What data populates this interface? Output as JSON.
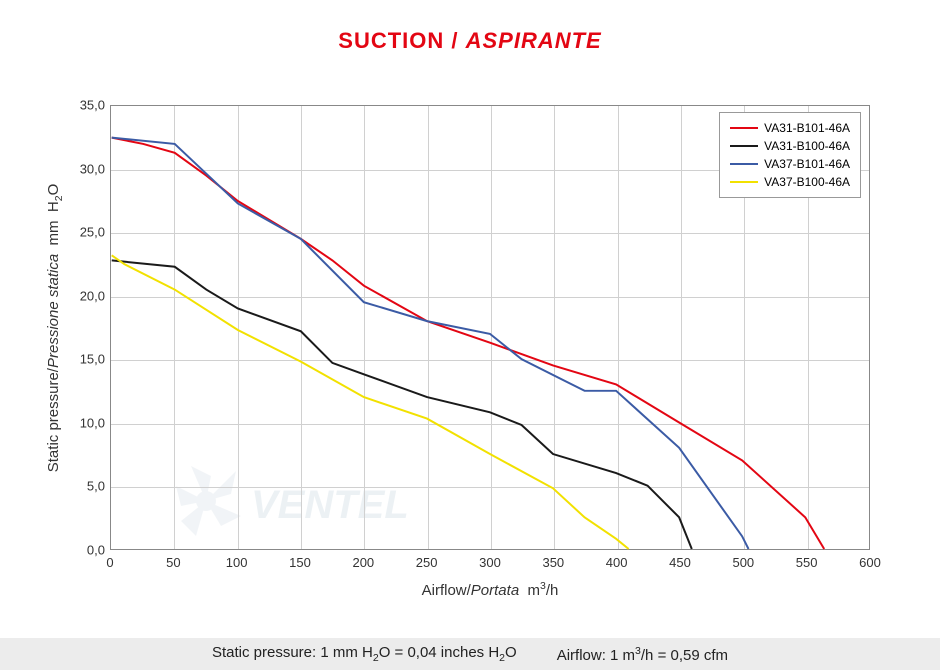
{
  "title": {
    "plain": "SUCTION",
    "separator": " / ",
    "italic": "ASPIRANTE",
    "color": "#e30613",
    "fontsize": 22
  },
  "chart": {
    "type": "line",
    "background_color": "#ffffff",
    "grid_color": "#d0d0d0",
    "border_color": "#888888",
    "xlim": [
      0,
      600
    ],
    "ylim": [
      0,
      35
    ],
    "xtick_step": 50,
    "ytick_step": 5,
    "xticks": [
      "0",
      "50",
      "100",
      "150",
      "200",
      "250",
      "300",
      "350",
      "400",
      "450",
      "500",
      "550",
      "600"
    ],
    "yticks": [
      "0,0",
      "5,0",
      "10,0",
      "15,0",
      "20,0",
      "25,0",
      "30,0",
      "35,0"
    ],
    "xlabel_plain": "Airflow",
    "xlabel_italic": "Portata",
    "xlabel_unit": "m³/h",
    "ylabel_plain": "Static pressure",
    "ylabel_italic": "Pressione statica",
    "ylabel_unit": "mm  H₂O",
    "label_fontsize": 15,
    "tick_fontsize": 13,
    "line_width": 2,
    "series": [
      {
        "name": "VA31-B101-46A",
        "color": "#e30613",
        "points": [
          [
            0,
            32.5
          ],
          [
            25,
            32.0
          ],
          [
            50,
            31.3
          ],
          [
            75,
            29.5
          ],
          [
            100,
            27.5
          ],
          [
            150,
            24.5
          ],
          [
            175,
            22.8
          ],
          [
            200,
            20.8
          ],
          [
            250,
            18.0
          ],
          [
            300,
            16.3
          ],
          [
            350,
            14.5
          ],
          [
            400,
            13.0
          ],
          [
            450,
            10.0
          ],
          [
            500,
            7.0
          ],
          [
            550,
            2.5
          ],
          [
            565,
            0
          ]
        ]
      },
      {
        "name": "VA31-B100-46A",
        "color": "#1a1a1a",
        "points": [
          [
            0,
            22.8
          ],
          [
            50,
            22.3
          ],
          [
            75,
            20.5
          ],
          [
            100,
            19.0
          ],
          [
            150,
            17.2
          ],
          [
            175,
            14.7
          ],
          [
            200,
            13.8
          ],
          [
            250,
            12.0
          ],
          [
            300,
            10.8
          ],
          [
            325,
            9.8
          ],
          [
            350,
            7.5
          ],
          [
            400,
            6.0
          ],
          [
            425,
            5.0
          ],
          [
            450,
            2.5
          ],
          [
            460,
            0
          ]
        ]
      },
      {
        "name": "VA37-B101-46A",
        "color": "#3b5ba5",
        "points": [
          [
            0,
            32.5
          ],
          [
            50,
            32.0
          ],
          [
            100,
            27.3
          ],
          [
            150,
            24.5
          ],
          [
            200,
            19.5
          ],
          [
            250,
            18.0
          ],
          [
            300,
            17.0
          ],
          [
            325,
            15.0
          ],
          [
            375,
            12.5
          ],
          [
            400,
            12.5
          ],
          [
            450,
            8.0
          ],
          [
            500,
            1.0
          ],
          [
            505,
            0
          ]
        ]
      },
      {
        "name": "VA37-B100-46A",
        "color": "#f2e100",
        "points": [
          [
            0,
            23.2
          ],
          [
            10,
            22.5
          ],
          [
            50,
            20.5
          ],
          [
            100,
            17.3
          ],
          [
            150,
            14.8
          ],
          [
            200,
            12.0
          ],
          [
            250,
            10.3
          ],
          [
            300,
            7.5
          ],
          [
            350,
            4.8
          ],
          [
            375,
            2.5
          ],
          [
            400,
            0.8
          ],
          [
            410,
            0
          ]
        ]
      }
    ],
    "legend": {
      "position": "top-right",
      "border_color": "#999",
      "fontsize": 12
    }
  },
  "footer": {
    "static_pressure_text": "Static pressure: 1 mm H₂O = 0,04 inches H₂O",
    "airflow_text": "Airflow: 1 m³/h = 0,59 cfm",
    "background_color": "#ececec",
    "fontsize": 15
  },
  "watermark": {
    "text": "VENTEL",
    "color": "#7aa8c9",
    "opacity": 0.18
  }
}
